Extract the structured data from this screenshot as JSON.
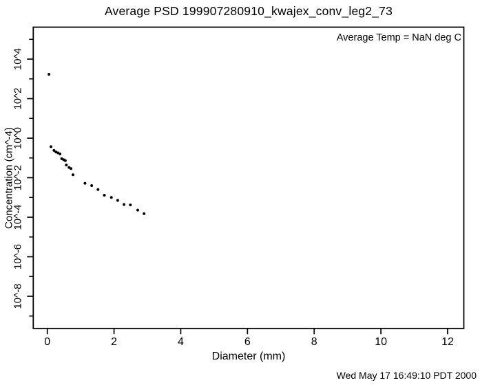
{
  "page": {
    "background": "#ffffff",
    "foreground": "#000000"
  },
  "header": {
    "title": "Average PSD 199907280910_kwajex_conv_leg2_73"
  },
  "plot_annotation": {
    "text": "Average Temp = NaN deg C"
  },
  "footer": {
    "timestamp": "Wed May 17 16:49:10 PDT 2000"
  },
  "chart_data": {
    "type": "scatter",
    "title": "Average PSD 199907280910_kwajex_conv_leg2_73",
    "xlabel": "Diameter (mm)",
    "ylabel": "Concentration (cm^-4)",
    "x_axis": {
      "lim": [
        -0.42,
        12.49
      ],
      "ticks": [
        {
          "v": 0,
          "label": "0"
        },
        {
          "v": 2,
          "label": "2"
        },
        {
          "v": 4,
          "label": "4"
        },
        {
          "v": 6,
          "label": "6"
        },
        {
          "v": 8,
          "label": "8"
        },
        {
          "v": 10,
          "label": "10"
        },
        {
          "v": 12,
          "label": "12"
        }
      ]
    },
    "y_axis": {
      "scale": "log10",
      "lim_exponents": [
        -9.6,
        5.6
      ],
      "labeled_ticks": [
        {
          "exp": 4,
          "label": "10^4"
        },
        {
          "exp": 2,
          "label": "10^2"
        },
        {
          "exp": 0,
          "label": "10^0"
        },
        {
          "exp": -2,
          "label": "10^-2"
        },
        {
          "exp": -4,
          "label": "10^-4"
        },
        {
          "exp": -6,
          "label": "10^-6"
        },
        {
          "exp": -8,
          "label": "10^-8"
        }
      ],
      "minor_tick_exponents": [
        5,
        3,
        1,
        -1,
        -3,
        -5,
        -7,
        -9
      ]
    },
    "marker": {
      "shape": "dot",
      "color": "#000000"
    },
    "grid": false,
    "legend": false,
    "points_diameter_mm_vs_concentration": [
      [
        0.05,
        1700
      ],
      [
        0.11,
        0.37
      ],
      [
        0.2,
        0.24
      ],
      [
        0.26,
        0.2
      ],
      [
        0.32,
        0.18
      ],
      [
        0.38,
        0.16
      ],
      [
        0.43,
        0.091
      ],
      [
        0.49,
        0.081
      ],
      [
        0.54,
        0.073
      ],
      [
        0.57,
        0.044
      ],
      [
        0.65,
        0.033
      ],
      [
        0.71,
        0.029
      ],
      [
        0.77,
        0.014
      ],
      [
        1.13,
        0.0052
      ],
      [
        1.33,
        0.004
      ],
      [
        1.52,
        0.0025
      ],
      [
        1.71,
        0.0013
      ],
      [
        1.92,
        0.001
      ],
      [
        2.11,
        0.00071
      ],
      [
        2.3,
        0.00044
      ],
      [
        2.49,
        0.00042
      ],
      [
        2.71,
        0.00023
      ],
      [
        2.9,
        0.00015
      ]
    ]
  }
}
